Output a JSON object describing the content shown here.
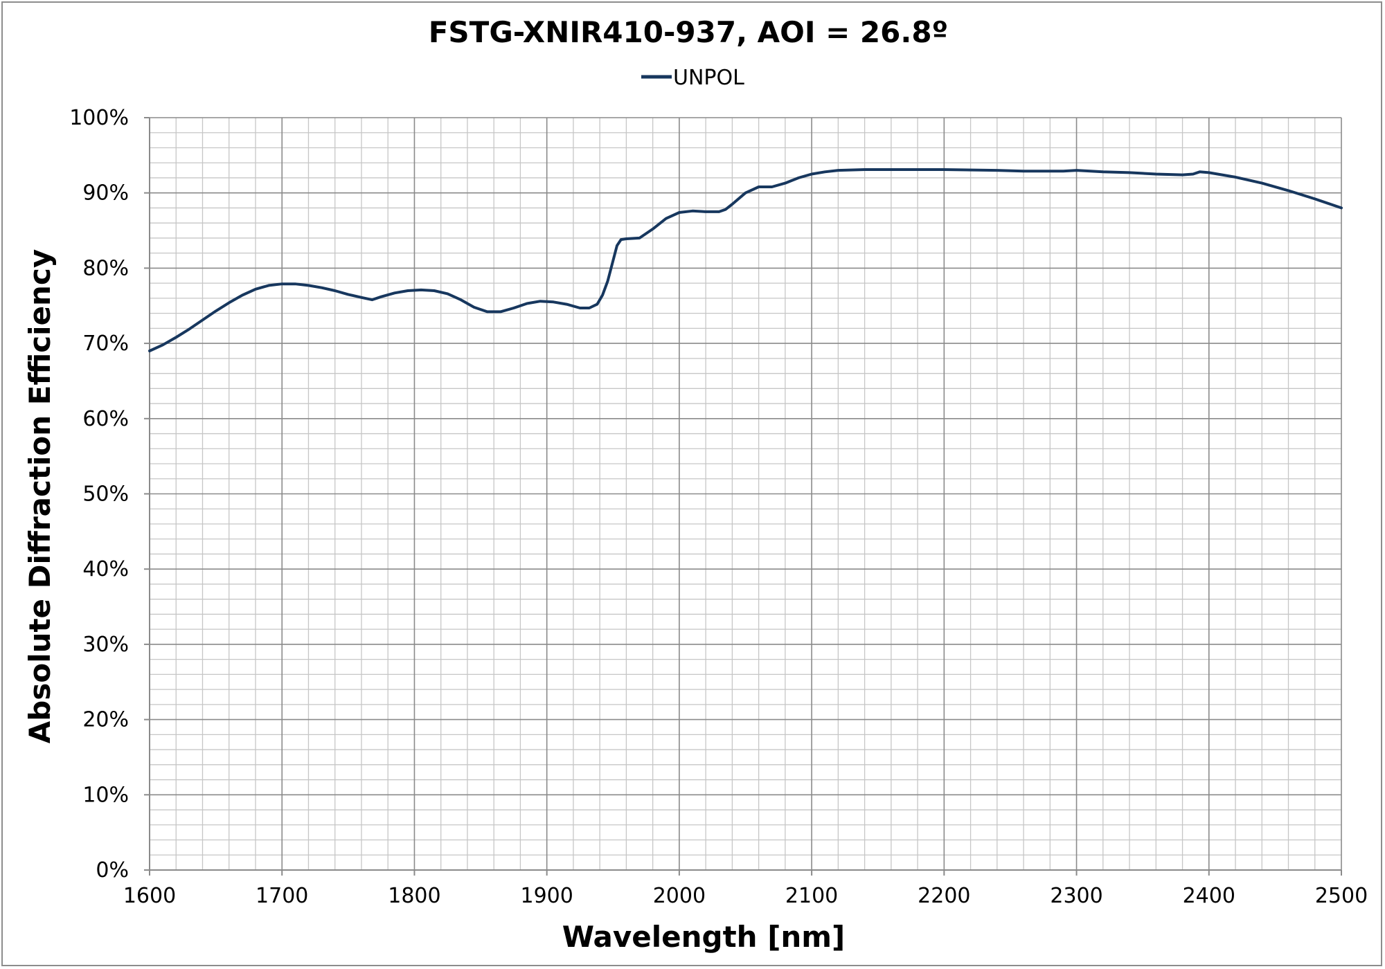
{
  "chart_data": {
    "type": "line",
    "title": "FSTG-XNIR410-937, AOI = 26.8º",
    "xlabel": "Wavelength [nm]",
    "ylabel": "Absolute Diffraction Efficiency",
    "xlim": [
      1600,
      2500
    ],
    "ylim": [
      0,
      100
    ],
    "x_ticks": [
      "1600",
      "1700",
      "1800",
      "1900",
      "2000",
      "2100",
      "2200",
      "2300",
      "2400",
      "2500"
    ],
    "y_ticks": [
      "0%",
      "10%",
      "20%",
      "30%",
      "40%",
      "50%",
      "60%",
      "70%",
      "80%",
      "90%",
      "100%"
    ],
    "grid": true,
    "legend_position": "top-center",
    "series": [
      {
        "name": "UNPOL",
        "color": "#17375e",
        "x": [
          1600,
          1610,
          1620,
          1630,
          1640,
          1650,
          1660,
          1670,
          1680,
          1690,
          1700,
          1710,
          1720,
          1730,
          1740,
          1750,
          1760,
          1768,
          1775,
          1785,
          1795,
          1805,
          1815,
          1825,
          1835,
          1845,
          1855,
          1865,
          1875,
          1885,
          1895,
          1905,
          1915,
          1925,
          1932,
          1938,
          1942,
          1946,
          1950,
          1953,
          1956,
          1960,
          1970,
          1980,
          1990,
          2000,
          2010,
          2020,
          2030,
          2035,
          2040,
          2050,
          2060,
          2070,
          2080,
          2090,
          2100,
          2110,
          2120,
          2140,
          2160,
          2180,
          2200,
          2240,
          2260,
          2290,
          2300,
          2320,
          2340,
          2360,
          2380,
          2388,
          2393,
          2400,
          2420,
          2440,
          2460,
          2480,
          2500
        ],
        "values": [
          69.0,
          69.8,
          70.8,
          71.9,
          73.1,
          74.3,
          75.4,
          76.4,
          77.2,
          77.7,
          77.9,
          77.9,
          77.7,
          77.4,
          77.0,
          76.5,
          76.1,
          75.8,
          76.2,
          76.7,
          77.0,
          77.1,
          77.0,
          76.6,
          75.8,
          74.8,
          74.2,
          74.2,
          74.7,
          75.3,
          75.6,
          75.5,
          75.2,
          74.7,
          74.7,
          75.2,
          76.4,
          78.3,
          81.0,
          83.0,
          83.8,
          83.9,
          84.0,
          85.2,
          86.6,
          87.4,
          87.6,
          87.5,
          87.5,
          87.8,
          88.5,
          90.0,
          90.8,
          90.8,
          91.3,
          92.0,
          92.5,
          92.8,
          93.0,
          93.1,
          93.1,
          93.1,
          93.1,
          93.0,
          92.9,
          92.9,
          93.0,
          92.8,
          92.7,
          92.5,
          92.4,
          92.5,
          92.8,
          92.7,
          92.1,
          91.3,
          90.3,
          89.2,
          88.0
        ]
      }
    ]
  }
}
